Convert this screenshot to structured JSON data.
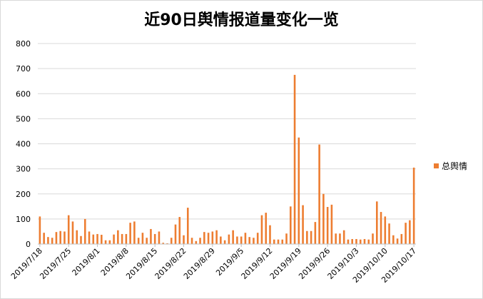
{
  "chart_data": {
    "type": "bar",
    "title": "近90日舆情报道量变化一览",
    "xlabel": "",
    "ylabel": "",
    "ylim": [
      0,
      800
    ],
    "yticks": [
      0,
      100,
      200,
      300,
      400,
      500,
      600,
      700,
      800
    ],
    "grid": true,
    "legend_position": "right",
    "color": "#ed7d31",
    "x_tick_labels": [
      "2019/7/18",
      "2019/7/25",
      "2019/8/1",
      "2019/8/8",
      "2019/8/15",
      "2019/8/22",
      "2019/8/29",
      "2019/9/5",
      "2019/9/12",
      "2019/9/19",
      "2019/9/26",
      "2019/10/3",
      "2019/10/10",
      "2019/10/17"
    ],
    "series": [
      {
        "name": "总舆情",
        "values": [
          110,
          45,
          28,
          25,
          48,
          52,
          50,
          115,
          90,
          55,
          32,
          100,
          50,
          38,
          40,
          37,
          15,
          15,
          38,
          55,
          40,
          40,
          85,
          90,
          25,
          45,
          25,
          60,
          40,
          50,
          5,
          3,
          25,
          78,
          108,
          35,
          145,
          25,
          12,
          25,
          48,
          45,
          50,
          55,
          30,
          15,
          38,
          55,
          30,
          30,
          45,
          28,
          25,
          45,
          115,
          125,
          75,
          18,
          18,
          18,
          42,
          150,
          675,
          425,
          155,
          52,
          52,
          88,
          397,
          200,
          148,
          157,
          42,
          42,
          55,
          18,
          20,
          20,
          18,
          20,
          18,
          42,
          170,
          128,
          110,
          82,
          35,
          22,
          40,
          85,
          95,
          305
        ]
      }
    ]
  }
}
